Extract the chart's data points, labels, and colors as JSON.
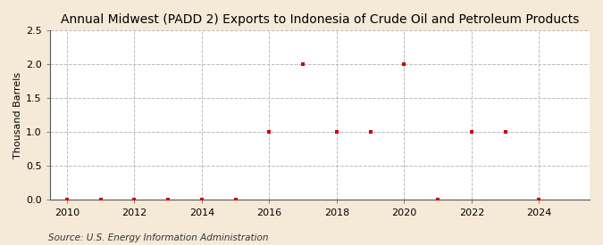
{
  "title": "Annual Midwest (PADD 2) Exports to Indonesia of Crude Oil and Petroleum Products",
  "ylabel": "Thousand Barrels",
  "source": "Source: U.S. Energy Information Administration",
  "figure_bg": "#f5ead8",
  "axes_bg": "#ffffff",
  "x_data": [
    2010,
    2011,
    2012,
    2013,
    2014,
    2015,
    2016,
    2017,
    2018,
    2019,
    2020,
    2021,
    2022,
    2023,
    2024
  ],
  "y_data": [
    0,
    0,
    0,
    0,
    0,
    0,
    1,
    2,
    1,
    1,
    2,
    0,
    1,
    1,
    0
  ],
  "marker_color": "#cc0000",
  "marker_size": 3.5,
  "xlim": [
    2009.5,
    2025.5
  ],
  "ylim": [
    0,
    2.5
  ],
  "xticks": [
    2010,
    2012,
    2014,
    2016,
    2018,
    2020,
    2022,
    2024
  ],
  "yticks": [
    0.0,
    0.5,
    1.0,
    1.5,
    2.0,
    2.5
  ],
  "grid_color": "#bbbbbb",
  "title_fontsize": 10,
  "label_fontsize": 8,
  "tick_fontsize": 8,
  "source_fontsize": 7.5
}
